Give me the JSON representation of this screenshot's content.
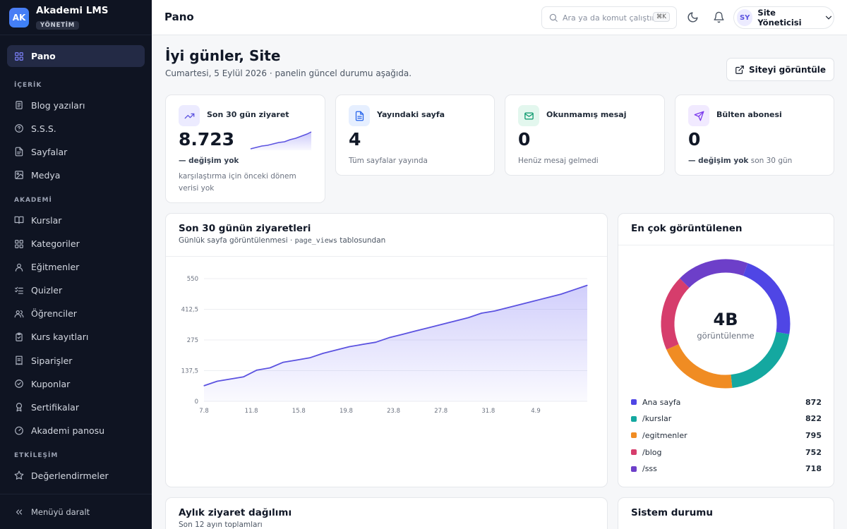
{
  "brand": {
    "logo": "AK",
    "name": "Akademi LMS",
    "badge": "YÖNETİM"
  },
  "sidebar": {
    "active": {
      "label": "Pano",
      "icon": "grid-icon"
    },
    "sections": [
      {
        "title": "İÇERİK",
        "items": [
          {
            "label": "Blog yazıları",
            "icon": "document-icon"
          },
          {
            "label": "S.S.S.",
            "icon": "help-circle-icon"
          },
          {
            "label": "Sayfalar",
            "icon": "file-icon"
          },
          {
            "label": "Medya",
            "icon": "image-icon"
          }
        ]
      },
      {
        "title": "AKADEMİ",
        "items": [
          {
            "label": "Kurslar",
            "icon": "book-icon"
          },
          {
            "label": "Kategoriler",
            "icon": "grid-icon"
          },
          {
            "label": "Eğitmenler",
            "icon": "user-icon"
          },
          {
            "label": "Quizler",
            "icon": "checklist-icon"
          },
          {
            "label": "Öğrenciler",
            "icon": "users-icon"
          },
          {
            "label": "Kurs kayıtları",
            "icon": "clipboard-icon"
          },
          {
            "label": "Siparişler",
            "icon": "receipt-icon"
          },
          {
            "label": "Kuponlar",
            "icon": "badge-check-icon"
          },
          {
            "label": "Sertifikalar",
            "icon": "award-icon"
          },
          {
            "label": "Akademi panosu",
            "icon": "gauge-icon"
          }
        ]
      },
      {
        "title": "ETKİLEŞİM",
        "items": [
          {
            "label": "Değerlendirmeler",
            "icon": "star-icon"
          }
        ]
      }
    ],
    "collapse_label": "Menüyü daralt"
  },
  "header": {
    "title": "Pano",
    "search_placeholder": "Ara ya da komut çalıştır",
    "search_shortcut": "⌘K",
    "user_initials": "SY",
    "user_name": "Site Yöneticisi"
  },
  "main": {
    "greeting": "İyi günler, Site",
    "subtitle": "Cumartesi, 5 Eylül 2026 · panelin güncel durumu aşağıda.",
    "view_site_label": "Siteyi görüntüle"
  },
  "stats": [
    {
      "label": "Son 30 gün ziyaret",
      "value": "8.723",
      "desc_bold": "— değişim yok",
      "desc": "",
      "note": "karşılaştırma için önceki dönem verisi yok",
      "icon": "trending-up-icon",
      "color": "#5b52e0",
      "bg": "#ecebff"
    },
    {
      "label": "Yayındaki sayfa",
      "value": "4",
      "desc_bold": "",
      "desc": "Tüm sayfalar yayında",
      "note": "",
      "icon": "file-text-icon",
      "color": "#2563eb",
      "bg": "#e6efff"
    },
    {
      "label": "Okunmamış mesaj",
      "value": "0",
      "desc_bold": "",
      "desc": "Henüz mesaj gelmedi",
      "note": "",
      "icon": "mail-icon",
      "color": "#059669",
      "bg": "#e3f7ee"
    },
    {
      "label": "Bülten abonesi",
      "value": "0",
      "desc_bold": "— değişim yok",
      "desc": " son 30 gün",
      "note": "",
      "icon": "send-icon",
      "color": "#7c3aed",
      "bg": "#f1eaff"
    }
  ],
  "visits_card": {
    "title": "Son 30 günün ziyaretleri",
    "subtitle_prefix": "Günlük sayfa görüntülenmesi · ",
    "subtitle_code": "page_views",
    "subtitle_suffix": " tablosundan"
  },
  "chart_data": [
    {
      "type": "area",
      "title": "Son 30 günün ziyaretleri",
      "ylim": [
        0,
        550
      ],
      "y_ticks": [
        "0",
        "137,5",
        "275",
        "412,5",
        "550"
      ],
      "x_ticks": [
        "7.8",
        "11.8",
        "15.8",
        "19.8",
        "23.8",
        "27.8",
        "31.8",
        "4.9"
      ],
      "color": "#5b52e0",
      "grid": true,
      "series": [
        {
          "values": [
            70,
            90,
            100,
            110,
            140,
            150,
            175,
            185,
            195,
            215,
            230,
            245,
            255,
            265,
            285,
            300,
            315,
            330,
            345,
            360,
            375,
            395,
            405,
            420,
            435,
            450,
            465,
            480,
            500,
            520
          ]
        }
      ]
    },
    {
      "type": "pie",
      "title": "En çok görüntülenen",
      "center_value": "4B",
      "center_label": "görüntülenme",
      "slices": [
        {
          "label": "Ana sayfa",
          "value": 872,
          "color": "#4f46e5"
        },
        {
          "label": "/kurslar",
          "value": 822,
          "color": "#14a8a0"
        },
        {
          "label": "/egitmenler",
          "value": 795,
          "color": "#f08c23"
        },
        {
          "label": "/blog",
          "value": 752,
          "color": "#d63d6c"
        },
        {
          "label": "/sss",
          "value": 718,
          "color": "#6d3fc9"
        }
      ]
    }
  ],
  "top_card_title": "En çok görüntülenen",
  "monthly_card": {
    "title": "Aylık ziyaret dağılımı",
    "subtitle": "Son 12 ayın toplamları"
  },
  "system_card": {
    "title": "Sistem durumu"
  }
}
